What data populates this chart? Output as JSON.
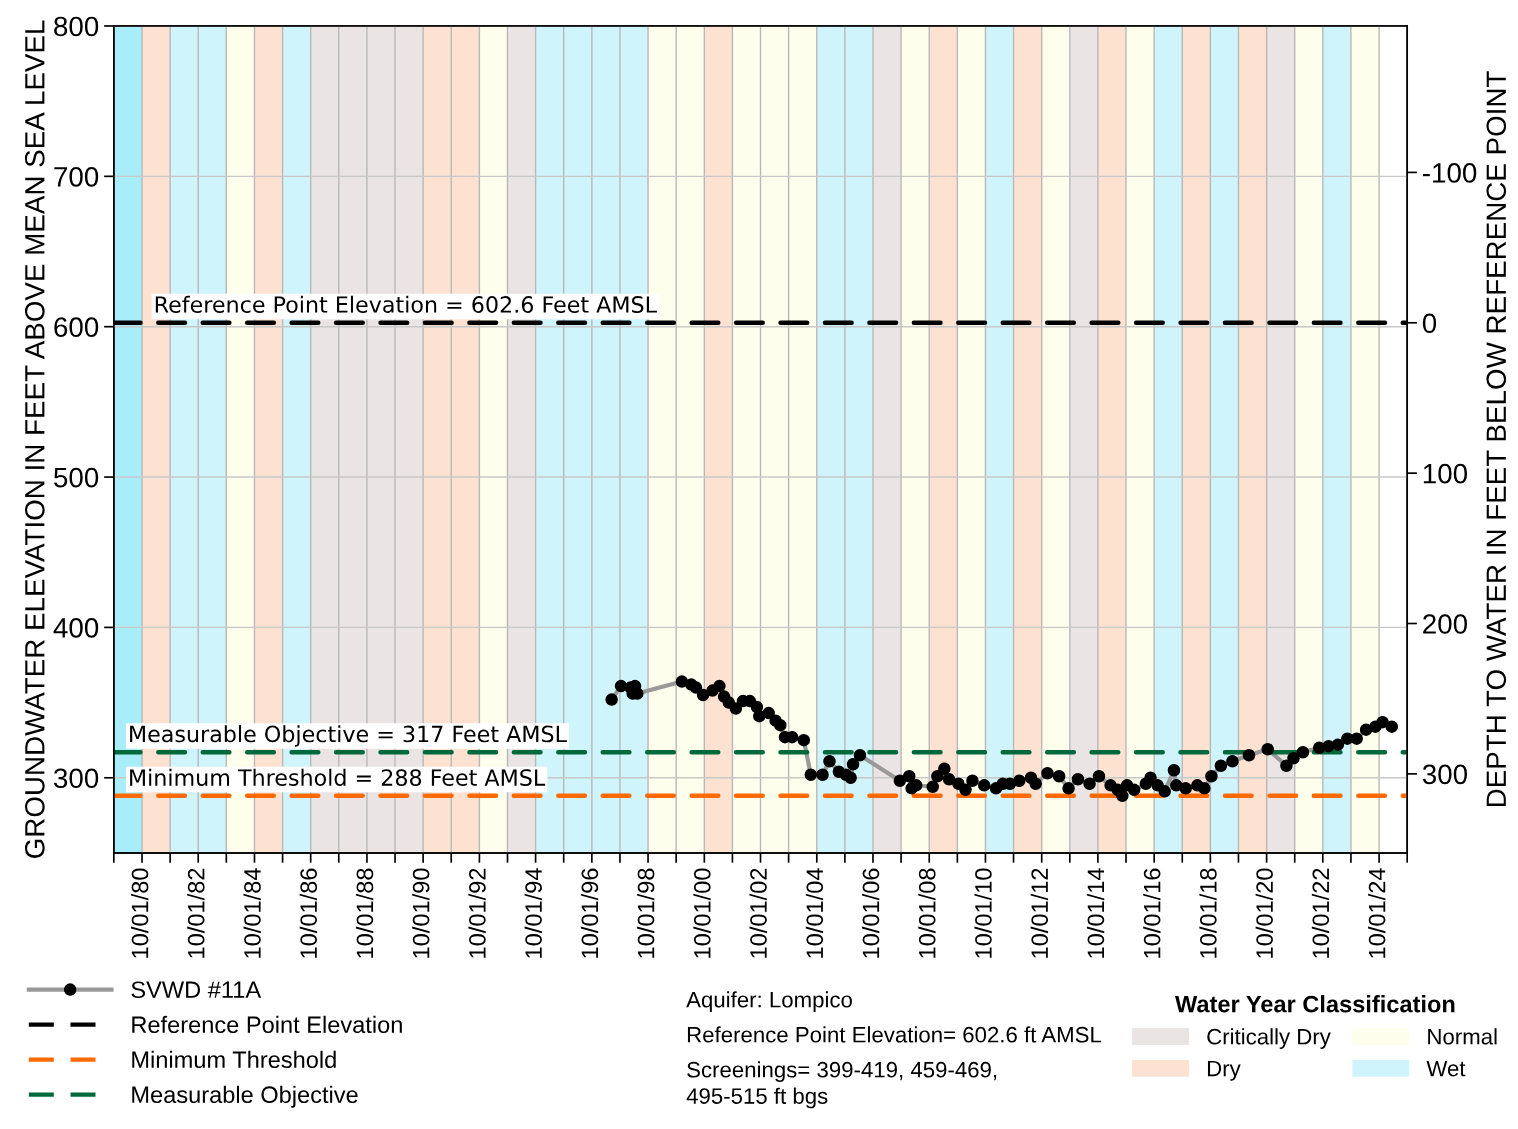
{
  "chart_data": {
    "type": "line",
    "ylabel": "GROUNDWATER ELEVATION IN FEET ABOVE MEAN SEA LEVEL",
    "y2label": "DEPTH TO WATER IN FEET BELOW REFERENCE POINT",
    "legend_title": "Water Year Classification",
    "xlim": [
      "1979-10-01",
      "2025-10-01"
    ],
    "ylim": [
      250,
      800
    ],
    "yticks": [
      300,
      400,
      500,
      600,
      700,
      800
    ],
    "y2lim": [
      352.6,
      -197.4
    ],
    "y2ticks": [
      {
        "value": -100,
        "label": "-100"
      },
      0,
      100,
      200,
      300
    ],
    "xticks": [
      {
        "value": "1979-10-01",
        "label": null
      },
      {
        "value": "1980-10-01",
        "label": "10/01/80"
      },
      {
        "value": "1981-10-01",
        "label": null
      },
      {
        "value": "1982-10-01",
        "label": "10/01/82"
      },
      {
        "value": "1983-10-01",
        "label": null
      },
      {
        "value": "1984-10-01",
        "label": "10/01/84"
      },
      {
        "value": "1985-10-01",
        "label": null
      },
      {
        "value": "1986-10-01",
        "label": "10/01/86"
      },
      {
        "value": "1987-10-01",
        "label": null
      },
      {
        "value": "1988-10-01",
        "label": "10/01/88"
      },
      {
        "value": "1989-10-01",
        "label": null
      },
      {
        "value": "1990-10-01",
        "label": "10/01/90"
      },
      {
        "value": "1991-10-01",
        "label": null
      },
      {
        "value": "1992-10-01",
        "label": "10/01/92"
      },
      {
        "value": "1993-10-01",
        "label": null
      },
      {
        "value": "1994-10-01",
        "label": "10/01/94"
      },
      {
        "value": "1995-10-01",
        "label": null
      },
      {
        "value": "1996-10-01",
        "label": "10/01/96"
      },
      {
        "value": "1997-10-01",
        "label": null
      },
      {
        "value": "1998-10-01",
        "label": "10/01/98"
      },
      {
        "value": "1999-10-01",
        "label": null
      },
      {
        "value": "2000-10-01",
        "label": "10/01/00"
      },
      {
        "value": "2001-10-01",
        "label": null
      },
      {
        "value": "2002-10-01",
        "label": "10/01/02"
      },
      {
        "value": "2003-10-01",
        "label": null
      },
      {
        "value": "2004-10-01",
        "label": "10/01/04"
      },
      {
        "value": "2005-10-01",
        "label": null
      },
      {
        "value": "2006-10-01",
        "label": "10/01/06"
      },
      {
        "value": "2007-10-01",
        "label": null
      },
      {
        "value": "2008-10-01",
        "label": "10/01/08"
      },
      {
        "value": "2009-10-01",
        "label": null
      },
      {
        "value": "2010-10-01",
        "label": "10/01/10"
      },
      {
        "value": "2011-10-01",
        "label": null
      },
      {
        "value": "2012-10-01",
        "label": "10/01/12"
      },
      {
        "value": "2013-10-01",
        "label": null
      },
      {
        "value": "2014-10-01",
        "label": "10/01/14"
      },
      {
        "value": "2015-10-01",
        "label": null
      },
      {
        "value": "2016-10-01",
        "label": "10/01/16"
      },
      {
        "value": "2017-10-01",
        "label": null
      },
      {
        "value": "2018-10-01",
        "label": "10/01/18"
      },
      {
        "value": "2019-10-01",
        "label": null
      },
      {
        "value": "2020-10-01",
        "label": "10/01/20"
      },
      {
        "value": "2021-10-01",
        "label": null
      },
      {
        "value": "2022-10-01",
        "label": "10/01/22"
      },
      {
        "value": "2023-10-01",
        "label": null
      },
      {
        "value": "2024-10-01",
        "label": "10/01/24"
      },
      {
        "value": "2025-10-01",
        "label": null
      }
    ],
    "grid": true,
    "legend": "bottom",
    "marker": "circle",
    "line_style": "solid",
    "series": [
      {
        "name": "SVWD #11A",
        "color": "#000000",
        "x": [
          "1997-06",
          "1997-10",
          "1998-02",
          "1998-03",
          "1998-04",
          "1998-05",
          "1999-12",
          "2000-04",
          "2000-06",
          "2000-09",
          "2001-01",
          "2001-04",
          "2001-06",
          "2001-08",
          "2001-11",
          "2002-02",
          "2002-05",
          "2002-08",
          "2002-09",
          "2003-01",
          "2003-04",
          "2003-06",
          "2003-08",
          "2003-11",
          "2004-04",
          "2004-07",
          "2004-12",
          "2005-03",
          "2005-07",
          "2005-10",
          "2005-12",
          "2006-01",
          "2006-04",
          "2007-09",
          "2008-01",
          "2008-02",
          "2008-04",
          "2008-11",
          "2009-01",
          "2009-04",
          "2009-06",
          "2009-10",
          "2010-01",
          "2010-04",
          "2010-09",
          "2011-02",
          "2011-05",
          "2011-08",
          "2011-12",
          "2012-05",
          "2012-07",
          "2012-12",
          "2013-05",
          "2013-09",
          "2014-01",
          "2014-06",
          "2014-10",
          "2015-03",
          "2015-06",
          "2015-08",
          "2015-10",
          "2016-01",
          "2016-06",
          "2016-08",
          "2016-11",
          "2017-02",
          "2017-06",
          "2017-07",
          "2017-11",
          "2018-04",
          "2018-07",
          "2018-10",
          "2019-02",
          "2019-07",
          "2020-02",
          "2020-10",
          "2021-06",
          "2021-09",
          "2022-01",
          "2022-08",
          "2022-12",
          "2023-04",
          "2023-08",
          "2023-12",
          "2024-04",
          "2024-08",
          "2024-11",
          "2025-03"
        ],
        "values": [
          352,
          361,
          360,
          356,
          361,
          356,
          364,
          362,
          360,
          355,
          358,
          361,
          354,
          350,
          346,
          351,
          351,
          347,
          341,
          343,
          338,
          335,
          327,
          327,
          325,
          302,
          302,
          311,
          304,
          302,
          300,
          309,
          315,
          298,
          301,
          293,
          295,
          294,
          301,
          306,
          299,
          296,
          292,
          298,
          295,
          293,
          296,
          296,
          298,
          300,
          296,
          303,
          301,
          293,
          299,
          296,
          301,
          295,
          292,
          288,
          295,
          292,
          296,
          300,
          295,
          291,
          305,
          295,
          293,
          295,
          293,
          301,
          308,
          311,
          315,
          319,
          308,
          313,
          317,
          320,
          321,
          322,
          326,
          326,
          332,
          334,
          337,
          334
        ]
      },
      {
        "name": "Reference Point Elevation",
        "color": "#000000",
        "marker": "none",
        "line_style": "dashed",
        "x": [
          "1979-10-01",
          "2025-10-01"
        ],
        "values": [
          602.6,
          602.6
        ]
      },
      {
        "name": "Minimum Threshold",
        "color": "#ff6a00",
        "marker": "none",
        "line_style": "dashed",
        "x": [
          "1979-10-01",
          "2025-10-01"
        ],
        "values": [
          288,
          288
        ]
      },
      {
        "name": "Measurable Objective",
        "color": "#00693c",
        "marker": "none",
        "line_style": "dashed",
        "x": [
          "1979-10-01",
          "2025-10-01"
        ],
        "values": [
          317,
          317
        ]
      }
    ],
    "annotations": [
      {
        "text": "Reference Point Elevation = 602.6 Feet AMSL",
        "x": "1981-03-01",
        "y": 602.6
      },
      {
        "text": "Measurable Objective = 317 Feet AMSL",
        "x": "1980-04-01",
        "y": 317
      },
      {
        "text": "Minimum Threshold = 288 Feet AMSL",
        "x": "1980-04-01",
        "y": 288
      },
      "Aquifer: Lompico",
      "Reference Point Elevation= 602.6 ft AMSL",
      "Screenings= 399-419, 459-469,\n495-515 ft bgs"
    ],
    "bands": [
      {
        "axis": "x",
        "from": "1979-10-01",
        "to": "1980-10-01",
        "color": "#a8eefa"
      },
      {
        "axis": "x",
        "from": "1980-10-01",
        "to": "1981-10-01",
        "color": "#fde2d2"
      },
      {
        "axis": "x",
        "from": "1981-10-01",
        "to": "1982-10-01",
        "color": "#cff4fc"
      },
      {
        "axis": "x",
        "from": "1982-10-01",
        "to": "1983-10-01",
        "color": "#cff4fc"
      },
      {
        "axis": "x",
        "from": "1983-10-01",
        "to": "1984-10-01",
        "color": "#fefeed"
      },
      {
        "axis": "x",
        "from": "1984-10-01",
        "to": "1985-10-01",
        "color": "#fde2d2"
      },
      {
        "axis": "x",
        "from": "1985-10-01",
        "to": "1986-10-01",
        "color": "#cff4fc"
      },
      {
        "axis": "x",
        "from": "1986-10-01",
        "to": "1987-10-01",
        "label": "Critically Dry",
        "color": "#ebe4e4"
      },
      {
        "axis": "x",
        "from": "1987-10-01",
        "to": "1988-10-01",
        "color": "#ebe4e4"
      },
      {
        "axis": "x",
        "from": "1988-10-01",
        "to": "1989-10-01",
        "color": "#ebe4e4"
      },
      {
        "axis": "x",
        "from": "1989-10-01",
        "to": "1990-10-01",
        "color": "#ebe4e4"
      },
      {
        "axis": "x",
        "from": "1990-10-01",
        "to": "1991-10-01",
        "label": "Dry",
        "color": "#fde2d2"
      },
      {
        "axis": "x",
        "from": "1991-10-01",
        "to": "1992-10-01",
        "color": "#fde2d2"
      },
      {
        "axis": "x",
        "from": "1992-10-01",
        "to": "1993-10-01",
        "label": "Normal",
        "color": "#fefeed"
      },
      {
        "axis": "x",
        "from": "1993-10-01",
        "to": "1994-10-01",
        "color": "#ebe4e4"
      },
      {
        "axis": "x",
        "from": "1994-10-01",
        "to": "1995-10-01",
        "label": "Wet",
        "color": "#cff4fc"
      },
      {
        "axis": "x",
        "from": "1995-10-01",
        "to": "1996-10-01",
        "color": "#cff4fc"
      },
      {
        "axis": "x",
        "from": "1996-10-01",
        "to": "1997-10-01",
        "color": "#cff4fc"
      },
      {
        "axis": "x",
        "from": "1997-10-01",
        "to": "1998-10-01",
        "color": "#cff4fc"
      },
      {
        "axis": "x",
        "from": "1998-10-01",
        "to": "1999-10-01",
        "color": "#fefeed"
      },
      {
        "axis": "x",
        "from": "1999-10-01",
        "to": "2000-10-01",
        "color": "#fefeed"
      },
      {
        "axis": "x",
        "from": "2000-10-01",
        "to": "2001-10-01",
        "color": "#fde2d2"
      },
      {
        "axis": "x",
        "from": "2001-10-01",
        "to": "2002-10-01",
        "color": "#fefeed"
      },
      {
        "axis": "x",
        "from": "2002-10-01",
        "to": "2003-10-01",
        "color": "#fefeed"
      },
      {
        "axis": "x",
        "from": "2003-10-01",
        "to": "2004-10-01",
        "color": "#fefeed"
      },
      {
        "axis": "x",
        "from": "2004-10-01",
        "to": "2005-10-01",
        "color": "#cff4fc"
      },
      {
        "axis": "x",
        "from": "2005-10-01",
        "to": "2006-10-01",
        "color": "#cff4fc"
      },
      {
        "axis": "x",
        "from": "2006-10-01",
        "to": "2007-10-01",
        "color": "#ebe4e4"
      },
      {
        "axis": "x",
        "from": "2007-10-01",
        "to": "2008-10-01",
        "color": "#fefeed"
      },
      {
        "axis": "x",
        "from": "2008-10-01",
        "to": "2009-10-01",
        "color": "#fde2d2"
      },
      {
        "axis": "x",
        "from": "2009-10-01",
        "to": "2010-10-01",
        "color": "#fefeed"
      },
      {
        "axis": "x",
        "from": "2010-10-01",
        "to": "2011-10-01",
        "color": "#cff4fc"
      },
      {
        "axis": "x",
        "from": "2011-10-01",
        "to": "2012-10-01",
        "color": "#fde2d2"
      },
      {
        "axis": "x",
        "from": "2012-10-01",
        "to": "2013-10-01",
        "color": "#fefeed"
      },
      {
        "axis": "x",
        "from": "2013-10-01",
        "to": "2014-10-01",
        "color": "#ebe4e4"
      },
      {
        "axis": "x",
        "from": "2014-10-01",
        "to": "2015-10-01",
        "color": "#fde2d2"
      },
      {
        "axis": "x",
        "from": "2015-10-01",
        "to": "2016-10-01",
        "color": "#fefeed"
      },
      {
        "axis": "x",
        "from": "2016-10-01",
        "to": "2017-10-01",
        "color": "#cff4fc"
      },
      {
        "axis": "x",
        "from": "2017-10-01",
        "to": "2018-10-01",
        "color": "#fde2d2"
      },
      {
        "axis": "x",
        "from": "2018-10-01",
        "to": "2019-10-01",
        "color": "#cff4fc"
      },
      {
        "axis": "x",
        "from": "2019-10-01",
        "to": "2020-10-01",
        "color": "#fde2d2"
      },
      {
        "axis": "x",
        "from": "2020-10-01",
        "to": "2021-10-01",
        "color": "#ebe4e4"
      },
      {
        "axis": "x",
        "from": "2021-10-01",
        "to": "2022-10-01",
        "color": "#fefeed"
      },
      {
        "axis": "x",
        "from": "2022-10-01",
        "to": "2023-10-01",
        "color": "#cff4fc"
      },
      {
        "axis": "x",
        "from": "2023-10-01",
        "to": "2024-10-01",
        "color": "#fefeed"
      }
    ]
  }
}
